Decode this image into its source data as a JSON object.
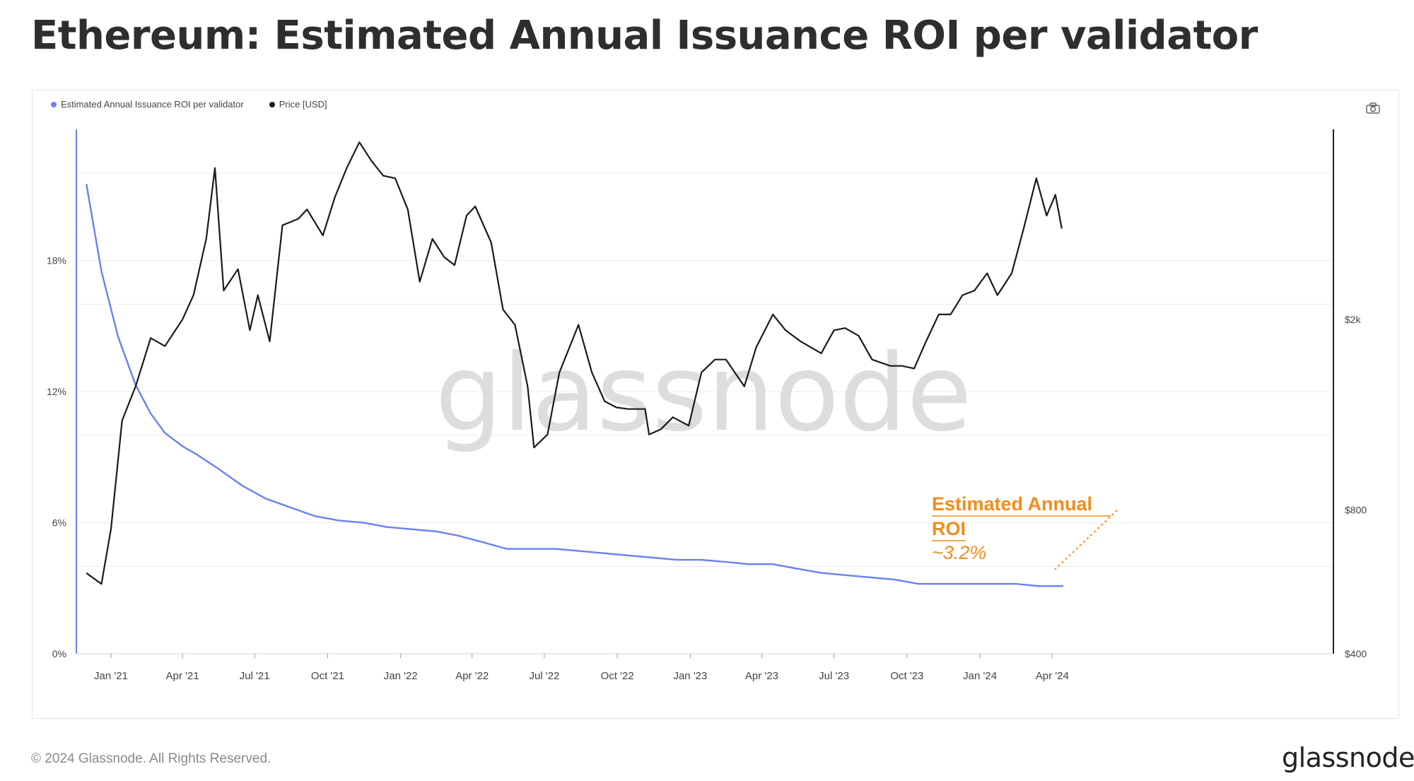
{
  "header": {
    "title": "Ethereum: Estimated Annual Issuance ROI per validator"
  },
  "legend": {
    "roi_label": "Estimated Annual Issuance ROI per validator",
    "price_label": "Price [USD]"
  },
  "icons": {
    "camera": "camera-icon"
  },
  "watermark": "glassnode",
  "annotation": {
    "line1": "Estimated Annual",
    "line2": "ROI",
    "value": "~3.2%",
    "color": "#f28c1d"
  },
  "footer": {
    "copyright": "© 2024 Glassnode. All Rights Reserved.",
    "logo": "glassnode"
  },
  "colors": {
    "roi": "#6b7ff0",
    "price": "#1a1a1a",
    "axis": "#222222",
    "grid": "#ececec",
    "annotation": "#f28c1d"
  },
  "chart_data": {
    "type": "line",
    "title": "Ethereum: Estimated Annual Issuance ROI per validator",
    "x_tick_labels": [
      "Jan '21",
      "Apr '21",
      "Jul '21",
      "Oct '21",
      "Jan '22",
      "Apr '22",
      "Jul '22",
      "Oct '22",
      "Jan '23",
      "Apr '23",
      "Jul '23",
      "Oct '23",
      "Jan '24",
      "Apr '24"
    ],
    "y_left": {
      "ticks": [
        "0%",
        "6%",
        "12%",
        "18%"
      ],
      "range": [
        0,
        24
      ],
      "unit": "%"
    },
    "y_right": {
      "ticks": [
        "$400",
        "$800",
        "$2k"
      ],
      "scale": "log",
      "range": [
        400,
        5000
      ]
    },
    "series": [
      {
        "name": "Estimated Annual Issuance ROI per validator",
        "axis": "left",
        "x": [
          "2020-12-01",
          "2020-12-20",
          "2021-01-10",
          "2021-02-01",
          "2021-02-20",
          "2021-03-10",
          "2021-04-01",
          "2021-04-20",
          "2021-05-15",
          "2021-06-15",
          "2021-07-15",
          "2021-08-15",
          "2021-09-15",
          "2021-10-15",
          "2021-11-15",
          "2021-12-15",
          "2022-01-15",
          "2022-02-15",
          "2022-03-15",
          "2022-04-15",
          "2022-05-15",
          "2022-06-15",
          "2022-07-15",
          "2022-08-15",
          "2022-09-15",
          "2022-10-15",
          "2022-11-15",
          "2022-12-15",
          "2023-01-15",
          "2023-02-15",
          "2023-03-15",
          "2023-04-15",
          "2023-05-15",
          "2023-06-15",
          "2023-07-15",
          "2023-08-15",
          "2023-09-15",
          "2023-10-15",
          "2023-11-15",
          "2023-12-15",
          "2024-01-15",
          "2024-02-15",
          "2024-03-15",
          "2024-04-15"
        ],
        "values": [
          21.5,
          17.5,
          14.5,
          12.3,
          11.0,
          10.1,
          9.5,
          9.1,
          8.5,
          7.7,
          7.1,
          6.7,
          6.3,
          6.1,
          6.0,
          5.8,
          5.7,
          5.6,
          5.4,
          5.1,
          4.8,
          4.8,
          4.8,
          4.7,
          4.6,
          4.5,
          4.4,
          4.3,
          4.3,
          4.2,
          4.1,
          4.1,
          3.9,
          3.7,
          3.6,
          3.5,
          3.4,
          3.2,
          3.2,
          3.2,
          3.2,
          3.2,
          3.1,
          3.1
        ]
      },
      {
        "name": "Price [USD]",
        "axis": "right",
        "x": [
          "2020-12-01",
          "2020-12-20",
          "2021-01-01",
          "2021-01-15",
          "2021-02-01",
          "2021-02-20",
          "2021-03-10",
          "2021-04-01",
          "2021-04-15",
          "2021-05-01",
          "2021-05-12",
          "2021-05-23",
          "2021-06-10",
          "2021-06-25",
          "2021-07-05",
          "2021-07-20",
          "2021-08-05",
          "2021-08-25",
          "2021-09-05",
          "2021-09-25",
          "2021-10-10",
          "2021-10-25",
          "2021-11-10",
          "2021-11-25",
          "2021-12-10",
          "2021-12-25",
          "2022-01-10",
          "2022-01-25",
          "2022-02-10",
          "2022-02-25",
          "2022-03-10",
          "2022-03-25",
          "2022-04-05",
          "2022-04-25",
          "2022-05-10",
          "2022-05-25",
          "2022-06-10",
          "2022-06-18",
          "2022-07-05",
          "2022-07-20",
          "2022-08-13",
          "2022-08-30",
          "2022-09-15",
          "2022-09-30",
          "2022-10-15",
          "2022-11-05",
          "2022-11-10",
          "2022-11-25",
          "2022-12-10",
          "2022-12-30",
          "2023-01-15",
          "2023-02-01",
          "2023-02-15",
          "2023-03-10",
          "2023-03-25",
          "2023-04-15",
          "2023-05-01",
          "2023-05-20",
          "2023-06-15",
          "2023-07-01",
          "2023-07-15",
          "2023-08-01",
          "2023-08-18",
          "2023-09-10",
          "2023-09-25",
          "2023-10-10",
          "2023-10-25",
          "2023-11-10",
          "2023-11-25",
          "2023-12-10",
          "2023-12-25",
          "2024-01-10",
          "2024-01-23",
          "2024-02-10",
          "2024-02-25",
          "2024-03-12",
          "2024-03-25",
          "2024-04-05",
          "2024-04-13"
        ],
        "values": [
          590,
          560,
          730,
          1230,
          1450,
          1830,
          1760,
          2000,
          2250,
          2950,
          4150,
          2300,
          2550,
          1900,
          2250,
          1800,
          3150,
          3250,
          3400,
          3000,
          3600,
          4150,
          4700,
          4300,
          4000,
          3950,
          3400,
          2400,
          2950,
          2700,
          2600,
          3300,
          3450,
          2900,
          2100,
          1950,
          1450,
          1080,
          1150,
          1550,
          1950,
          1550,
          1350,
          1310,
          1300,
          1300,
          1150,
          1180,
          1250,
          1200,
          1550,
          1650,
          1650,
          1450,
          1750,
          2050,
          1900,
          1800,
          1700,
          1900,
          1920,
          1850,
          1650,
          1600,
          1600,
          1580,
          1800,
          2050,
          2050,
          2250,
          2300,
          2500,
          2250,
          2500,
          3100,
          3950,
          3300,
          3650,
          3100
        ]
      }
    ],
    "annotation": {
      "text": "Estimated Annual ROI ~3.2%",
      "target_x": "2024-04-13",
      "target_y": 3.2
    },
    "grid": true,
    "legend_position": "top-left"
  }
}
